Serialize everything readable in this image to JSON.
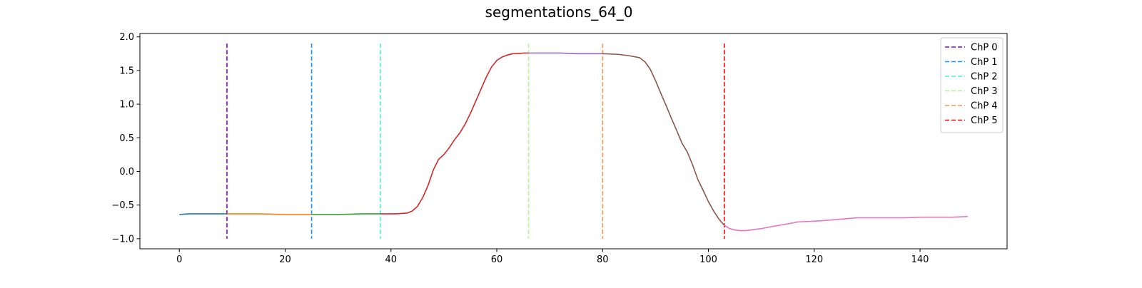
{
  "chart_data": {
    "type": "line",
    "title": "segmentations_64_0",
    "xlabel": "",
    "ylabel": "",
    "xlim": [
      -7.45,
      156.45
    ],
    "ylim": [
      -1.15,
      2.05
    ],
    "xticks": [
      0,
      20,
      40,
      60,
      80,
      100,
      120,
      140
    ],
    "yticks": [
      -1.0,
      -0.5,
      0.0,
      0.5,
      1.0,
      1.5,
      2.0
    ],
    "xtick_labels": [
      "0",
      "20",
      "40",
      "60",
      "80",
      "100",
      "120",
      "140"
    ],
    "ytick_labels": [
      "−1.0",
      "−0.5",
      "0.0",
      "0.5",
      "1.0",
      "1.5",
      "2.0"
    ],
    "grid": false,
    "legend_position": "upper right",
    "series": [
      {
        "color": "#1f77b4",
        "x": [
          0,
          2,
          5,
          9
        ],
        "y": [
          -0.64,
          -0.63,
          -0.63,
          -0.63
        ]
      },
      {
        "color": "#ff7f0e",
        "x": [
          9,
          15,
          20,
          25
        ],
        "y": [
          -0.63,
          -0.63,
          -0.64,
          -0.64
        ]
      },
      {
        "color": "#2ca02c",
        "x": [
          25,
          30,
          35,
          38
        ],
        "y": [
          -0.64,
          -0.64,
          -0.63,
          -0.63
        ]
      },
      {
        "color": "#d62728",
        "x": [
          38,
          41,
          43,
          44,
          45,
          46,
          47,
          48,
          49,
          50,
          51,
          52,
          53,
          54,
          55,
          56,
          57,
          58,
          59,
          60,
          61,
          62,
          63,
          64,
          65,
          66
        ],
        "y": [
          -0.63,
          -0.63,
          -0.62,
          -0.59,
          -0.52,
          -0.39,
          -0.21,
          0.02,
          0.18,
          0.25,
          0.35,
          0.47,
          0.57,
          0.7,
          0.86,
          1.04,
          1.22,
          1.4,
          1.55,
          1.65,
          1.7,
          1.73,
          1.75,
          1.75,
          1.76,
          1.76
        ]
      },
      {
        "color": "#9467bd",
        "x": [
          66,
          67,
          70,
          72,
          75,
          78,
          80
        ],
        "y": [
          1.76,
          1.76,
          1.76,
          1.76,
          1.75,
          1.75,
          1.75
        ]
      },
      {
        "color": "#8c564b",
        "x": [
          80,
          83,
          85,
          87,
          88,
          89,
          90,
          91,
          92,
          93,
          94,
          95,
          96,
          97,
          98,
          99,
          100,
          101,
          102,
          103
        ],
        "y": [
          1.75,
          1.74,
          1.72,
          1.69,
          1.63,
          1.52,
          1.35,
          1.16,
          0.98,
          0.79,
          0.61,
          0.42,
          0.29,
          0.1,
          -0.12,
          -0.28,
          -0.45,
          -0.59,
          -0.71,
          -0.8
        ]
      },
      {
        "color": "#e377c2",
        "x": [
          103,
          104,
          105,
          106,
          107,
          108,
          110,
          112,
          115,
          117,
          120,
          122,
          125,
          128,
          131,
          134,
          137,
          140,
          143,
          146,
          149
        ],
        "y": [
          -0.8,
          -0.85,
          -0.87,
          -0.88,
          -0.88,
          -0.87,
          -0.85,
          -0.82,
          -0.78,
          -0.75,
          -0.74,
          -0.73,
          -0.71,
          -0.69,
          -0.69,
          -0.69,
          -0.69,
          -0.68,
          -0.68,
          -0.68,
          -0.67
        ]
      }
    ],
    "changepoints": [
      {
        "label": "ChP 0",
        "x": 9,
        "color": "#8000ff"
      },
      {
        "label": "ChP 1",
        "x": 25,
        "color": "#1996f3"
      },
      {
        "label": "ChP 2",
        "x": 38,
        "color": "#4df3ce"
      },
      {
        "label": "ChP 3",
        "x": 66,
        "color": "#b2f396"
      },
      {
        "label": "ChP 4",
        "x": 80,
        "color": "#ff964f"
      },
      {
        "label": "ChP 5",
        "x": 103,
        "color": "#ff0000"
      }
    ],
    "changepoint_ymin": -1.0,
    "changepoint_ymax": 1.9
  }
}
